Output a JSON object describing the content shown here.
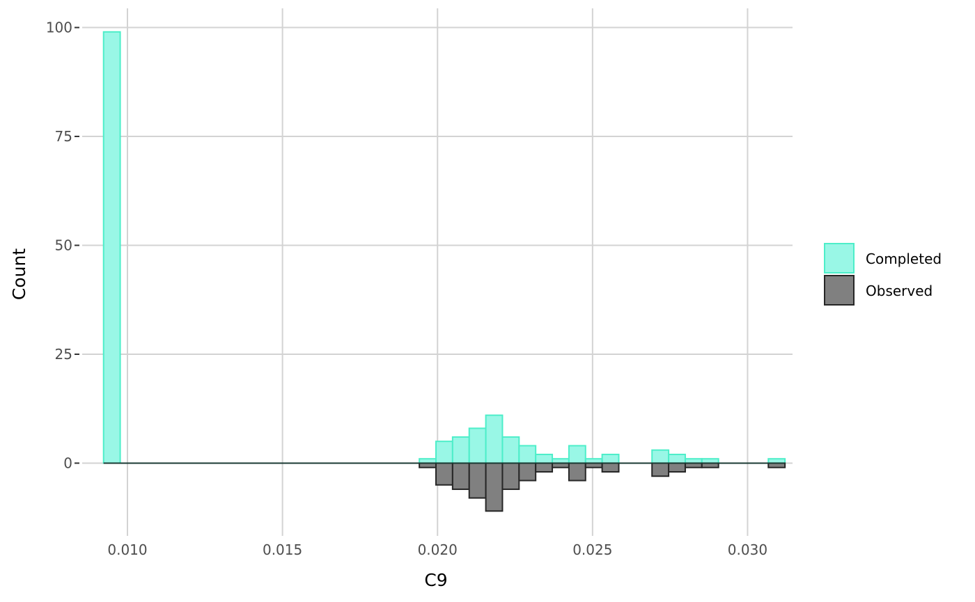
{
  "chart_data": {
    "type": "bar",
    "subtype": "mirrored-histogram",
    "xlabel": "C9",
    "ylabel": "Count",
    "xlim": [
      0.00854,
      0.03145
    ],
    "ylim": [
      -16.7,
      104.4
    ],
    "x_ticks": [
      {
        "value": 0.01,
        "label": "0.010"
      },
      {
        "value": 0.015,
        "label": "0.015"
      },
      {
        "value": 0.02,
        "label": "0.020"
      },
      {
        "value": 0.025,
        "label": "0.025"
      },
      {
        "value": 0.03,
        "label": "0.030"
      }
    ],
    "y_ticks": [
      {
        "value": 0,
        "label": "0"
      },
      {
        "value": 25,
        "label": "25"
      },
      {
        "value": 50,
        "label": "50"
      },
      {
        "value": 75,
        "label": "75"
      },
      {
        "value": 100,
        "label": "100"
      }
    ],
    "grid": true,
    "legend_position": "right",
    "bin_start": 0.00923,
    "bin_width": 0.000536,
    "series": [
      {
        "name": "Completed",
        "direction": "up",
        "fill": "#99f7e6",
        "stroke": "#4deec9",
        "values": [
          99,
          0,
          0,
          0,
          0,
          0,
          0,
          0,
          0,
          0,
          0,
          0,
          0,
          0,
          0,
          0,
          0,
          0,
          0,
          1,
          5,
          6,
          8,
          11,
          6,
          4,
          2,
          1,
          4,
          1,
          2,
          0,
          0,
          3,
          2,
          1,
          1,
          0,
          0,
          0,
          1
        ]
      },
      {
        "name": "Observed",
        "direction": "down",
        "fill": "#808080",
        "stroke": "#262626",
        "values": [
          0,
          0,
          0,
          0,
          0,
          0,
          0,
          0,
          0,
          0,
          0,
          0,
          0,
          0,
          0,
          0,
          0,
          0,
          0,
          1,
          5,
          6,
          8,
          11,
          6,
          4,
          2,
          1,
          4,
          1,
          2,
          0,
          0,
          3,
          2,
          1,
          1,
          0,
          0,
          0,
          1
        ]
      }
    ],
    "colors": {
      "grid": "#d3d3d3",
      "baseline": "#1a3a33",
      "tick_mark": "#333333"
    }
  }
}
